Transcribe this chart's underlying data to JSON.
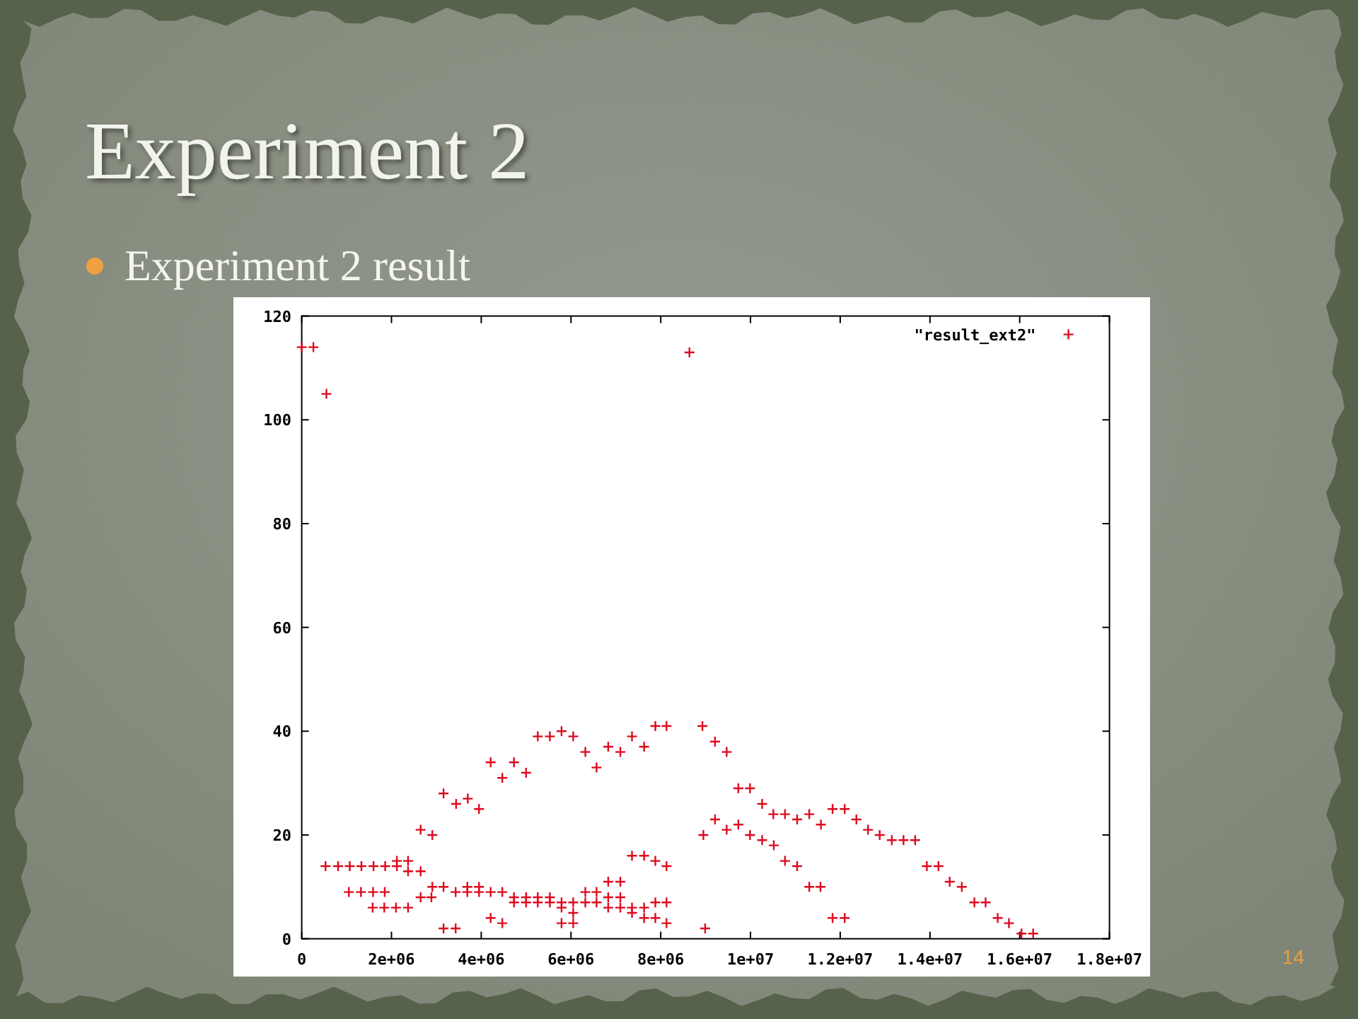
{
  "chart_data": {
    "type": "scatter",
    "title": "Experiment 2",
    "subtitle": "Experiment 2 result",
    "annotations": [
      "14"
    ],
    "xlim": [
      0,
      18000000
    ],
    "xticks": [
      0,
      {
        "value": 2000000,
        "label": "2e+06"
      },
      {
        "value": 4000000,
        "label": "4e+06"
      },
      {
        "value": 6000000,
        "label": "6e+06"
      },
      {
        "value": 8000000,
        "label": "8e+06"
      },
      {
        "value": 10000000,
        "label": "1e+07"
      },
      {
        "value": 12000000,
        "label": "1.2e+07"
      },
      {
        "value": 14000000,
        "label": "1.4e+07"
      },
      {
        "value": 16000000,
        "label": "1.6e+07"
      },
      {
        "value": 18000000,
        "label": "1.8e+07"
      }
    ],
    "ylim": [
      0,
      120
    ],
    "yticks": [
      0,
      20,
      40,
      60,
      80,
      100,
      120
    ],
    "marker": "cross",
    "legend": "top right",
    "series": [
      {
        "name": "\"result_ext2\"",
        "color": "#dd0a1e",
        "x": [
          0,
          260000,
          550000,
          530000,
          810000,
          1070000,
          1050000,
          1330000,
          1320000,
          1600000,
          1590000,
          1580000,
          1860000,
          1850000,
          1840000,
          2120000,
          2120000,
          2100000,
          2370000,
          2370000,
          2370000,
          2650000,
          2650000,
          2650000,
          2890000,
          2910000,
          2910000,
          3160000,
          3160000,
          3160000,
          3440000,
          3430000,
          3430000,
          3700000,
          3690000,
          3690000,
          3950000,
          3950000,
          3950000,
          4210000,
          4210000,
          4210000,
          4470000,
          4470000,
          4470000,
          4730000,
          4730000,
          4730000,
          5000000,
          5000000,
          5000000,
          5260000,
          5260000,
          5260000,
          5530000,
          5530000,
          5530000,
          5790000,
          5790000,
          5790000,
          5790000,
          6050000,
          6050000,
          6050000,
          6050000,
          6320000,
          6320000,
          6320000,
          6570000,
          6570000,
          6570000,
          6830000,
          6830000,
          6830000,
          6830000,
          7100000,
          7100000,
          7100000,
          7100000,
          7360000,
          7360000,
          7360000,
          7360000,
          7630000,
          7630000,
          7630000,
          7630000,
          7880000,
          7880000,
          7880000,
          7880000,
          8130000,
          8130000,
          8130000,
          8130000,
          8640000,
          8930000,
          8950000,
          8990000,
          9210000,
          9210000,
          9470000,
          9470000,
          9730000,
          9730000,
          9990000,
          9990000,
          10260000,
          10260000,
          10510000,
          10520000,
          10770000,
          10770000,
          11040000,
          11040000,
          11310000,
          11310000,
          11570000,
          11560000,
          11830000,
          11830000,
          12100000,
          12100000,
          12360000,
          12620000,
          12880000,
          13150000,
          13410000,
          13670000,
          13930000,
          14190000,
          14440000,
          14710000,
          14990000,
          15240000,
          15510000,
          15760000,
          16040000,
          16300000
        ],
        "values": [
          114,
          114,
          105,
          14,
          14,
          14,
          9,
          14,
          9,
          14,
          9,
          6,
          14,
          9,
          6,
          14,
          15,
          6,
          15,
          13,
          6,
          13,
          21,
          8,
          8,
          20,
          10,
          28,
          10,
          2,
          26,
          2,
          9,
          27,
          10,
          9,
          25,
          10,
          9,
          34,
          9,
          4,
          31,
          9,
          3,
          34,
          8,
          7,
          32,
          8,
          7,
          39,
          8,
          7,
          39,
          8,
          7,
          40,
          7,
          6,
          3,
          39,
          7,
          5,
          3,
          36,
          9,
          7,
          33,
          9,
          7,
          37,
          11,
          8,
          6,
          36,
          11,
          8,
          6,
          39,
          16,
          6,
          5,
          37,
          16,
          6,
          4,
          41,
          15,
          7,
          4,
          41,
          14,
          7,
          3,
          113,
          41,
          20,
          2,
          38,
          23,
          36,
          21,
          29,
          22,
          29,
          20,
          26,
          19,
          24,
          18,
          24,
          15,
          23,
          14,
          24,
          10,
          22,
          10,
          25,
          4,
          25,
          4,
          23,
          21,
          20,
          19,
          19,
          19,
          14,
          14,
          11,
          10,
          7,
          7,
          4,
          3,
          1,
          1
        ]
      }
    ]
  }
}
